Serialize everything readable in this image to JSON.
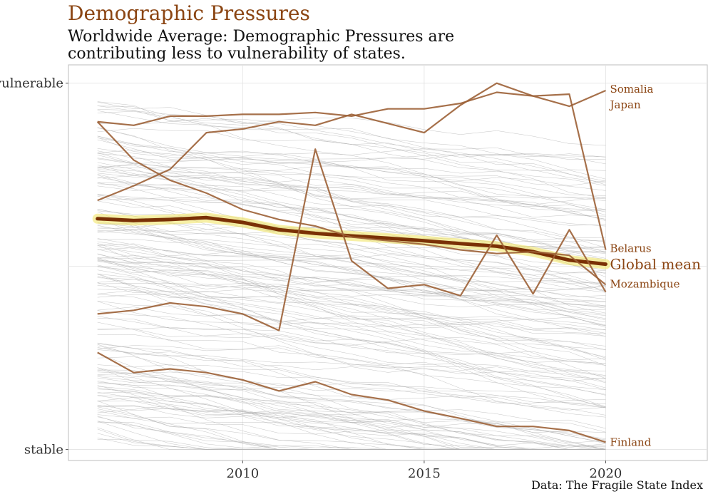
{
  "chart_data": {
    "type": "line",
    "title": "Demographic Pressures",
    "subtitle": "Worldwide Average: Demographic Pressures are contributing less to vulnerability of states.",
    "caption": "Data: The Fragile State Index",
    "x_ticks": [
      2010,
      2015,
      2020
    ],
    "y_ticks": [
      {
        "value": 1.0,
        "label": "vulnerable"
      },
      {
        "value": 0.0,
        "label": "stable"
      }
    ],
    "x_range": [
      2005.2,
      2022.8
    ],
    "y_range": [
      -0.03,
      1.05
    ],
    "grid": true,
    "colors": {
      "highlight": "#8B4513",
      "mean": "#7a3005",
      "mean_glow": "#f2e66a",
      "background_lines": "#b0b0b0"
    },
    "years": [
      2006,
      2007,
      2008,
      2009,
      2010,
      2011,
      2012,
      2013,
      2014,
      2015,
      2016,
      2017,
      2018,
      2019,
      2020
    ],
    "global_mean": {
      "name": "Global mean",
      "values": [
        0.63,
        0.625,
        0.628,
        0.633,
        0.62,
        0.6,
        0.59,
        0.583,
        0.577,
        0.57,
        0.562,
        0.555,
        0.54,
        0.517,
        0.506
      ]
    },
    "highlighted_series": [
      {
        "name": "Somalia",
        "values": [
          0.895,
          0.885,
          0.91,
          0.91,
          0.915,
          0.915,
          0.92,
          0.91,
          0.93,
          0.93,
          0.945,
          0.975,
          0.965,
          0.937,
          0.98
        ]
      },
      {
        "name": "Mozambique",
        "values": [
          0.895,
          0.79,
          0.735,
          0.7,
          0.655,
          0.628,
          0.61,
          0.58,
          0.57,
          0.56,
          0.545,
          0.535,
          0.54,
          0.53,
          0.45
        ]
      },
      {
        "name": "Japan",
        "values": [
          0.68,
          0.72,
          0.765,
          0.865,
          0.875,
          0.895,
          0.885,
          0.915,
          0.89,
          0.865,
          0.94,
          1.0,
          0.965,
          0.97,
          0.545
        ]
      },
      {
        "name": "Belarus",
        "values": [
          0.37,
          0.38,
          0.4,
          0.39,
          0.37,
          0.325,
          0.82,
          0.515,
          0.44,
          0.45,
          0.42,
          0.585,
          0.425,
          0.6,
          0.43
        ]
      },
      {
        "name": "Finland",
        "values": [
          0.265,
          0.21,
          0.22,
          0.21,
          0.19,
          0.16,
          0.185,
          0.15,
          0.135,
          0.105,
          0.085,
          0.063,
          0.063,
          0.052,
          0.02
        ]
      }
    ],
    "background_series_count": 160
  }
}
